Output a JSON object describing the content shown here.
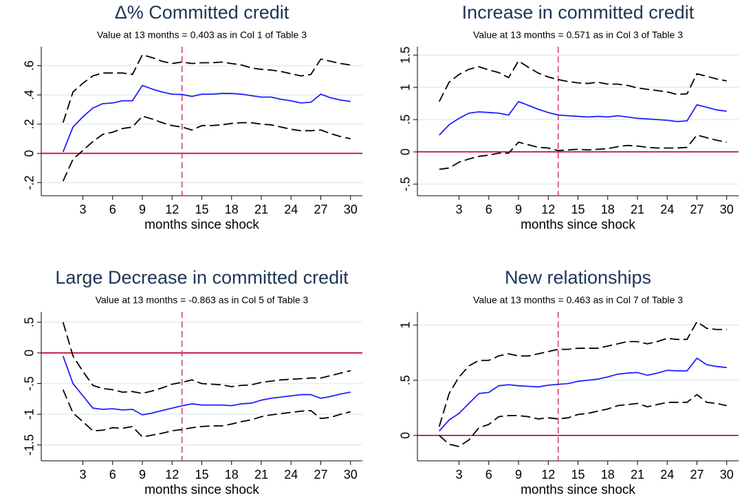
{
  "chart_data": [
    {
      "type": "line",
      "title": "Δ% Committed credit",
      "subtitle": "Value at 13 months = 0.403 as in Col 1 of Table 3",
      "xlabel": "months since shock",
      "x": [
        1,
        2,
        3,
        4,
        5,
        6,
        7,
        8,
        9,
        10,
        11,
        12,
        13,
        14,
        15,
        16,
        17,
        18,
        19,
        20,
        21,
        22,
        23,
        24,
        25,
        26,
        27,
        28,
        29,
        30
      ],
      "xlim": [
        -1.2,
        31.2
      ],
      "xticks": [
        3,
        6,
        9,
        12,
        15,
        18,
        21,
        24,
        27,
        30
      ],
      "ylim": [
        -0.29,
        0.73
      ],
      "yticks": [
        {
          "value": -0.2,
          "label": "-.2"
        },
        0,
        {
          "value": 0.2,
          "label": ".2"
        },
        {
          "value": 0.4,
          "label": ".4"
        },
        {
          "value": 0.6,
          "label": ".6"
        }
      ],
      "grid": true,
      "hline": {
        "value": 0,
        "color": "#c8103e"
      },
      "vline": {
        "value": 13,
        "color": "#d8346a"
      },
      "series": [
        {
          "color": "#1f1fff",
          "dash": false,
          "values": [
            0.01,
            0.18,
            0.25,
            0.31,
            0.34,
            0.345,
            0.36,
            0.36,
            0.465,
            0.44,
            0.42,
            0.405,
            0.403,
            0.39,
            0.405,
            0.405,
            0.41,
            0.41,
            0.405,
            0.395,
            0.385,
            0.385,
            0.37,
            0.36,
            0.345,
            0.35,
            0.405,
            0.38,
            0.365,
            0.355
          ]
        },
        {
          "color": "#000000",
          "dash": true,
          "values": [
            0.21,
            0.42,
            0.48,
            0.53,
            0.55,
            0.55,
            0.55,
            0.54,
            0.675,
            0.655,
            0.63,
            0.615,
            0.625,
            0.615,
            0.62,
            0.62,
            0.625,
            0.615,
            0.605,
            0.585,
            0.575,
            0.57,
            0.56,
            0.545,
            0.53,
            0.54,
            0.645,
            0.63,
            0.615,
            0.605
          ]
        },
        {
          "color": "#000000",
          "dash": true,
          "values": [
            -0.19,
            -0.04,
            0.02,
            0.08,
            0.13,
            0.145,
            0.17,
            0.18,
            0.255,
            0.235,
            0.21,
            0.19,
            0.18,
            0.16,
            0.19,
            0.19,
            0.195,
            0.205,
            0.21,
            0.21,
            0.2,
            0.195,
            0.18,
            0.165,
            0.155,
            0.155,
            0.16,
            0.135,
            0.115,
            0.1
          ]
        }
      ]
    },
    {
      "type": "line",
      "title": "Increase in committed credit",
      "subtitle": "Value at 13 months = 0.571 as in Col 3 of Table 3",
      "xlabel": "months since shock",
      "x": [
        1,
        2,
        3,
        4,
        5,
        6,
        7,
        8,
        9,
        10,
        11,
        12,
        13,
        14,
        15,
        16,
        17,
        18,
        19,
        20,
        21,
        22,
        23,
        24,
        25,
        26,
        27,
        28,
        29,
        30
      ],
      "xlim": [
        -1.2,
        31.2
      ],
      "xticks": [
        3,
        6,
        9,
        12,
        15,
        18,
        21,
        24,
        27,
        30
      ],
      "ylim": [
        -0.68,
        1.63
      ],
      "yticks": [
        {
          "value": -0.5,
          "label": "-.5"
        },
        0,
        {
          "value": 0.5,
          "label": ".5"
        },
        1,
        1.5
      ],
      "grid": true,
      "hline": {
        "value": 0,
        "color": "#c8103e"
      },
      "vline": {
        "value": 13,
        "color": "#d8346a"
      },
      "series": [
        {
          "color": "#1f1fff",
          "dash": false,
          "values": [
            0.26,
            0.42,
            0.52,
            0.6,
            0.62,
            0.61,
            0.6,
            0.57,
            0.78,
            0.72,
            0.66,
            0.61,
            0.571,
            0.56,
            0.55,
            0.54,
            0.55,
            0.54,
            0.56,
            0.54,
            0.52,
            0.51,
            0.5,
            0.49,
            0.47,
            0.48,
            0.73,
            0.69,
            0.65,
            0.63
          ]
        },
        {
          "color": "#000000",
          "dash": true,
          "values": [
            0.78,
            1.08,
            1.2,
            1.28,
            1.32,
            1.27,
            1.23,
            1.15,
            1.41,
            1.31,
            1.22,
            1.16,
            1.12,
            1.09,
            1.07,
            1.06,
            1.08,
            1.05,
            1.05,
            1.03,
            0.99,
            0.97,
            0.95,
            0.93,
            0.89,
            0.9,
            1.21,
            1.17,
            1.13,
            1.1
          ]
        },
        {
          "color": "#000000",
          "dash": true,
          "values": [
            -0.27,
            -0.25,
            -0.16,
            -0.11,
            -0.07,
            -0.05,
            -0.02,
            -0.02,
            0.15,
            0.11,
            0.07,
            0.06,
            0.02,
            0.03,
            0.04,
            0.03,
            0.04,
            0.05,
            0.08,
            0.1,
            0.09,
            0.07,
            0.06,
            0.06,
            0.06,
            0.07,
            0.26,
            0.22,
            0.18,
            0.15
          ]
        }
      ]
    },
    {
      "type": "line",
      "title": "Large Decrease in committed credit",
      "subtitle": "Value at 13 months = -0.863 as in Col 5 of Table 3",
      "xlabel": "months since shock",
      "x": [
        1,
        2,
        3,
        4,
        5,
        6,
        7,
        8,
        9,
        10,
        11,
        12,
        13,
        14,
        15,
        16,
        17,
        18,
        19,
        20,
        21,
        22,
        23,
        24,
        25,
        26,
        27,
        28,
        29,
        30
      ],
      "xlim": [
        -1.2,
        31.2
      ],
      "xticks": [
        3,
        6,
        9,
        12,
        15,
        18,
        21,
        24,
        27,
        30
      ],
      "ylim": [
        -1.76,
        0.67
      ],
      "yticks": [
        -1.5,
        -1,
        {
          "value": -0.5,
          "label": "-.5"
        },
        0,
        {
          "value": 0.5,
          "label": ".5"
        }
      ],
      "grid": true,
      "hline": {
        "value": 0,
        "color": "#c8103e"
      },
      "vline": {
        "value": 13,
        "color": "#d8346a"
      },
      "series": [
        {
          "color": "#1f1fff",
          "dash": false,
          "values": [
            -0.05,
            -0.5,
            -0.7,
            -0.9,
            -0.92,
            -0.91,
            -0.93,
            -0.92,
            -1.01,
            -0.98,
            -0.94,
            -0.9,
            -0.863,
            -0.83,
            -0.85,
            -0.85,
            -0.85,
            -0.86,
            -0.83,
            -0.82,
            -0.77,
            -0.74,
            -0.72,
            -0.7,
            -0.68,
            -0.68,
            -0.74,
            -0.71,
            -0.67,
            -0.64
          ]
        },
        {
          "color": "#000000",
          "dash": true,
          "values": [
            0.5,
            -0.05,
            -0.3,
            -0.53,
            -0.58,
            -0.6,
            -0.64,
            -0.63,
            -0.66,
            -0.62,
            -0.57,
            -0.51,
            -0.48,
            -0.44,
            -0.5,
            -0.51,
            -0.52,
            -0.55,
            -0.53,
            -0.52,
            -0.48,
            -0.46,
            -0.44,
            -0.43,
            -0.42,
            -0.41,
            -0.41,
            -0.37,
            -0.33,
            -0.29
          ]
        },
        {
          "color": "#000000",
          "dash": true,
          "values": [
            -0.6,
            -0.98,
            -1.12,
            -1.27,
            -1.26,
            -1.22,
            -1.23,
            -1.2,
            -1.37,
            -1.34,
            -1.31,
            -1.27,
            -1.25,
            -1.22,
            -1.2,
            -1.19,
            -1.19,
            -1.16,
            -1.12,
            -1.09,
            -1.04,
            -1.01,
            -0.99,
            -0.97,
            -0.95,
            -0.94,
            -1.07,
            -1.05,
            -1.0,
            -0.96
          ]
        }
      ]
    },
    {
      "type": "line",
      "title": "New relationships",
      "subtitle": "Value at 13 months = 0.463 as in Col 7 of Table 3",
      "xlabel": "months since shock",
      "x": [
        1,
        2,
        3,
        4,
        5,
        6,
        7,
        8,
        9,
        10,
        11,
        12,
        13,
        14,
        15,
        16,
        17,
        18,
        19,
        20,
        21,
        22,
        23,
        24,
        25,
        26,
        27,
        28,
        29,
        30
      ],
      "xlim": [
        -1.2,
        31.2
      ],
      "xticks": [
        3,
        6,
        9,
        12,
        15,
        18,
        21,
        24,
        27,
        30
      ],
      "ylim": [
        -0.23,
        1.12
      ],
      "yticks": [
        0,
        {
          "value": 0.5,
          "label": ".5"
        },
        1
      ],
      "grid": true,
      "hline": {
        "value": 0,
        "color": "#c8103e"
      },
      "vline": {
        "value": 13,
        "color": "#d8346a"
      },
      "series": [
        {
          "color": "#1f1fff",
          "dash": false,
          "values": [
            0.04,
            0.14,
            0.2,
            0.29,
            0.38,
            0.39,
            0.45,
            0.46,
            0.45,
            0.445,
            0.44,
            0.455,
            0.463,
            0.47,
            0.49,
            0.5,
            0.51,
            0.53,
            0.555,
            0.565,
            0.57,
            0.545,
            0.565,
            0.59,
            0.585,
            0.585,
            0.7,
            0.64,
            0.625,
            0.615
          ]
        },
        {
          "color": "#000000",
          "dash": true,
          "values": [
            0.08,
            0.38,
            0.53,
            0.63,
            0.68,
            0.68,
            0.72,
            0.74,
            0.72,
            0.72,
            0.74,
            0.76,
            0.78,
            0.78,
            0.79,
            0.79,
            0.79,
            0.81,
            0.83,
            0.85,
            0.85,
            0.83,
            0.85,
            0.88,
            0.87,
            0.87,
            1.03,
            0.97,
            0.96,
            0.96
          ]
        },
        {
          "color": "#000000",
          "dash": true,
          "values": [
            0.0,
            -0.08,
            -0.1,
            -0.04,
            0.07,
            0.1,
            0.17,
            0.18,
            0.18,
            0.17,
            0.15,
            0.16,
            0.15,
            0.16,
            0.19,
            0.2,
            0.22,
            0.24,
            0.27,
            0.28,
            0.29,
            0.26,
            0.28,
            0.3,
            0.3,
            0.3,
            0.37,
            0.3,
            0.29,
            0.27
          ]
        }
      ]
    }
  ]
}
